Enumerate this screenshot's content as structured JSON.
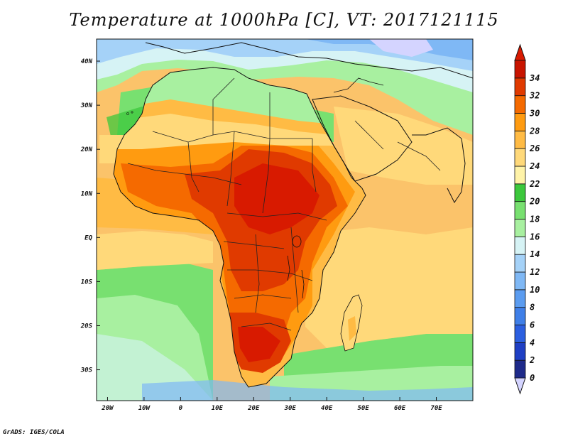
{
  "title": "Temperature at 1000hPa [C], VT: 2017121115",
  "credit": "GrADS: IGES/COLA",
  "map": {
    "lon_range": [
      -23,
      80
    ],
    "lat_range": [
      -37,
      45
    ],
    "lon_ticks": [
      {
        "value": -20,
        "label": "20W"
      },
      {
        "value": -10,
        "label": "10W"
      },
      {
        "value": 0,
        "label": "0"
      },
      {
        "value": 10,
        "label": "10E"
      },
      {
        "value": 20,
        "label": "20E"
      },
      {
        "value": 30,
        "label": "30E"
      },
      {
        "value": 40,
        "label": "40E"
      },
      {
        "value": 50,
        "label": "50E"
      },
      {
        "value": 60,
        "label": "60E"
      },
      {
        "value": 70,
        "label": "70E"
      }
    ],
    "lat_ticks": [
      {
        "value": 40,
        "label": "40N"
      },
      {
        "value": 30,
        "label": "30N"
      },
      {
        "value": 20,
        "label": "20N"
      },
      {
        "value": 10,
        "label": "10N"
      },
      {
        "value": 0,
        "label": "EQ"
      },
      {
        "value": -10,
        "label": "10S"
      },
      {
        "value": -20,
        "label": "20S"
      },
      {
        "value": -30,
        "label": "30S"
      }
    ]
  },
  "colorbar": {
    "labels": [
      "0",
      "2",
      "4",
      "6",
      "8",
      "10",
      "12",
      "14",
      "16",
      "18",
      "20",
      "22",
      "24",
      "26",
      "28",
      "30",
      "32",
      "34"
    ],
    "colors": [
      "#1e2a8a",
      "#1e3fc4",
      "#2b5fe0",
      "#3f7fe8",
      "#5b9cf0",
      "#7fb8f5",
      "#a5d2f8",
      "#d6f3f5",
      "#a8f0a0",
      "#78e070",
      "#3cc83c",
      "#fff3a8",
      "#ffd97a",
      "#ffbb44",
      "#ff9b10",
      "#f56a00",
      "#e03a00",
      "#c81400"
    ],
    "below_color": "#d4d4ff",
    "above_color": "#d81a00"
  }
}
